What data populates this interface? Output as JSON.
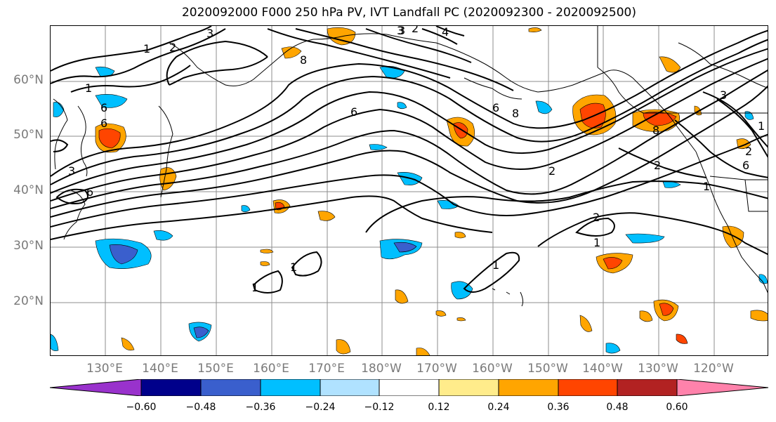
{
  "title": "2020092000 F000 250 hPa PV, IVT Landfall PC (2020092300 - 2020092500)",
  "lat_labels": [
    "60°N",
    "50°N",
    "40°N",
    "30°N",
    "20°N"
  ],
  "lon_labels": [
    "130°E",
    "140°E",
    "150°E",
    "160°E",
    "170°E",
    "180°W",
    "170°W",
    "160°W",
    "150°W",
    "140°W",
    "130°W",
    "120°W"
  ],
  "colorbar": {
    "tick_labels": [
      "−0.60",
      "−0.48",
      "−0.36",
      "−0.24",
      "−0.12",
      "0.12",
      "0.24",
      "0.36",
      "0.48",
      "0.60"
    ],
    "colors": [
      "#9932cc",
      "#00008b",
      "#3a5fcd",
      "#00bfff",
      "#b0e2ff",
      "#ffffff",
      "#ffec8b",
      "#ffa500",
      "#ff4500",
      "#b22222",
      "#ff82ab"
    ]
  },
  "contour_labels": [
    "1",
    "2",
    "3",
    "3",
    "2",
    "4",
    "8",
    "6",
    "8",
    "6",
    "6",
    "6",
    "3",
    "6",
    "8",
    "2",
    "2",
    "1",
    "2",
    "1",
    "1",
    "1",
    "1",
    "3",
    "1",
    "6",
    "3",
    "2",
    "1"
  ]
}
